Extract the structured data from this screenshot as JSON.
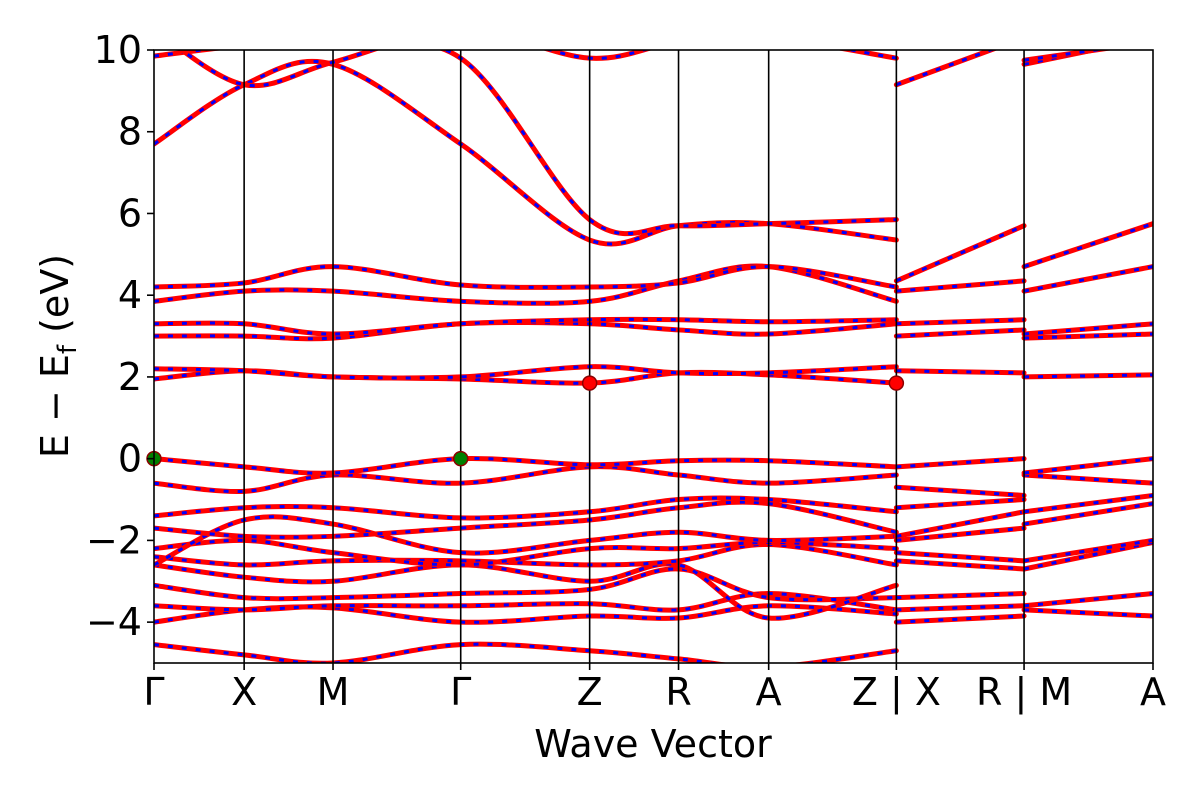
{
  "chart_data": {
    "type": "line",
    "title": "",
    "xlabel": "Wave Vector",
    "ylabel": "E − E_f (eV)",
    "ylabel_main": "E − E",
    "ylabel_sub": "f",
    "ylabel_unit": " (eV)",
    "ylim": [
      -5,
      10
    ],
    "yticks": [
      10,
      8,
      6,
      4,
      2,
      0,
      -2,
      -4
    ],
    "ytick_labels": [
      "10",
      "8",
      "6",
      "4",
      "2",
      "0",
      "−2",
      "−4"
    ],
    "grid": false,
    "legend": "none",
    "xrange": [
      0,
      7.98
    ],
    "kpoints": [
      {
        "label": "Γ",
        "x": 0.0
      },
      {
        "label": "X",
        "x": 0.72
      },
      {
        "label": "M",
        "x": 1.43
      },
      {
        "label": "Γ",
        "x": 2.45
      },
      {
        "label": "Z",
        "x": 3.48
      },
      {
        "label": "R",
        "x": 4.19
      },
      {
        "label": "A",
        "x": 4.91
      },
      {
        "label": "Z | X",
        "x": 5.93
      },
      {
        "label": "R | M",
        "x": 6.95
      },
      {
        "label": "A",
        "x": 7.98
      }
    ],
    "colors": {
      "up": "#ff0000",
      "down": "#0000ff",
      "vbm": "#008000",
      "cbm": "#ff0000"
    },
    "vbm_points": [
      {
        "x": 0.0,
        "y": 0.0
      },
      {
        "x": 2.45,
        "y": 0.0
      }
    ],
    "cbm_points": [
      {
        "x": 3.48,
        "y": 1.85
      },
      {
        "x": 5.93,
        "y": 1.85
      }
    ],
    "segments": [
      {
        "range": [
          0.0,
          5.93
        ],
        "x": [
          0.0,
          0.72,
          1.43,
          2.45,
          3.48,
          4.19,
          4.91,
          5.93
        ],
        "bands": [
          [
            -4.55,
            -4.8,
            -5.0,
            -4.55,
            -4.7,
            -4.9,
            -5.1,
            -4.7
          ],
          [
            -4.0,
            -3.7,
            -3.65,
            -4.0,
            -3.85,
            -3.9,
            -3.6,
            -3.8
          ],
          [
            -3.6,
            -3.7,
            -3.6,
            -3.6,
            -3.55,
            -3.7,
            -3.3,
            -3.7
          ],
          [
            -3.1,
            -3.4,
            -3.4,
            -3.3,
            -3.2,
            -2.7,
            -3.4,
            -3.4
          ],
          [
            -2.6,
            -2.9,
            -3.0,
            -2.6,
            -3.0,
            -2.6,
            -3.9,
            -3.1
          ],
          [
            -2.4,
            -2.6,
            -2.5,
            -2.5,
            -2.6,
            -2.5,
            -2.1,
            -2.6
          ],
          [
            -2.2,
            -2.0,
            -2.3,
            -2.6,
            -2.2,
            -2.2,
            -2.05,
            -2.2
          ],
          [
            -2.6,
            -1.5,
            -1.6,
            -2.3,
            -2.0,
            -1.8,
            -2.0,
            -1.9
          ],
          [
            -1.7,
            -1.9,
            -1.9,
            -1.7,
            -1.5,
            -1.2,
            -1.1,
            -1.8
          ],
          [
            -1.4,
            -1.2,
            -1.2,
            -1.45,
            -1.3,
            -1.0,
            -1.0,
            -1.3
          ],
          [
            -0.6,
            -0.8,
            -0.4,
            -0.6,
            -0.2,
            -0.4,
            -0.6,
            -0.4
          ],
          [
            0.0,
            -0.2,
            -0.35,
            0.0,
            -0.15,
            -0.05,
            -0.05,
            -0.2
          ],
          [
            1.95,
            2.15,
            2.0,
            1.95,
            1.85,
            2.1,
            2.05,
            1.85
          ],
          [
            2.2,
            2.15,
            2.0,
            2.0,
            2.25,
            2.1,
            2.1,
            2.25
          ],
          [
            3.0,
            3.0,
            2.95,
            3.3,
            3.3,
            3.15,
            3.05,
            3.3
          ],
          [
            3.3,
            3.3,
            3.05,
            3.3,
            3.4,
            3.4,
            3.35,
            3.4
          ],
          [
            3.85,
            4.1,
            4.1,
            3.85,
            3.85,
            4.35,
            4.7,
            3.85
          ],
          [
            4.2,
            4.3,
            4.7,
            4.25,
            4.2,
            4.3,
            4.7,
            4.2
          ],
          [
            7.7,
            9.15,
            9.65,
            7.7,
            5.35,
            5.7,
            5.75,
            5.35
          ],
          [
            9.85,
            10.1,
            10.1,
            9.8,
            5.85,
            5.7,
            5.75,
            5.85
          ],
          [
            10.5,
            9.15,
            9.7,
            10.5,
            9.8,
            10.2,
            10.3,
            9.8
          ]
        ]
      },
      {
        "range": [
          5.93,
          6.95
        ],
        "x": [
          5.93,
          6.95
        ],
        "bands": [
          [
            -4.0,
            -3.85
          ],
          [
            -3.7,
            -3.6
          ],
          [
            -3.4,
            -3.3
          ],
          [
            -2.5,
            -2.7
          ],
          [
            -2.3,
            -2.5
          ],
          [
            -2.0,
            -1.7
          ],
          [
            -1.9,
            -1.3
          ],
          [
            -1.2,
            -1.0
          ],
          [
            -0.7,
            -0.9
          ],
          [
            -0.2,
            0.0
          ],
          [
            2.15,
            2.1
          ],
          [
            3.0,
            3.15
          ],
          [
            3.3,
            3.4
          ],
          [
            4.1,
            4.35
          ],
          [
            4.35,
            5.7
          ],
          [
            9.15,
            10.3
          ]
        ]
      },
      {
        "range": [
          6.95,
          7.98
        ],
        "x": [
          6.95,
          7.98
        ],
        "bands": [
          [
            -3.7,
            -3.85
          ],
          [
            -3.6,
            -3.3
          ],
          [
            -2.7,
            -2.05
          ],
          [
            -2.5,
            -2.0
          ],
          [
            -1.6,
            -1.1
          ],
          [
            -1.3,
            -0.9
          ],
          [
            -0.4,
            -0.6
          ],
          [
            -0.35,
            0.0
          ],
          [
            2.0,
            2.05
          ],
          [
            2.95,
            3.05
          ],
          [
            3.05,
            3.3
          ],
          [
            4.1,
            4.7
          ],
          [
            4.7,
            5.75
          ],
          [
            9.65,
            10.3
          ],
          [
            9.75,
            10.2
          ]
        ]
      }
    ]
  }
}
